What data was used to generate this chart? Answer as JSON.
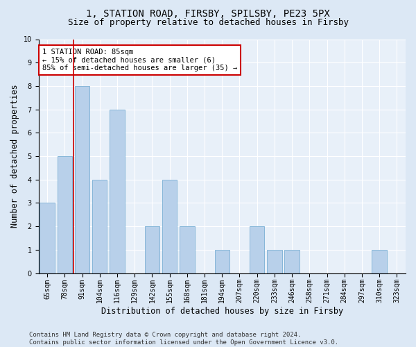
{
  "title": "1, STATION ROAD, FIRSBY, SPILSBY, PE23 5PX",
  "subtitle": "Size of property relative to detached houses in Firsby",
  "xlabel": "Distribution of detached houses by size in Firsby",
  "ylabel": "Number of detached properties",
  "categories": [
    "65sqm",
    "78sqm",
    "91sqm",
    "104sqm",
    "116sqm",
    "129sqm",
    "142sqm",
    "155sqm",
    "168sqm",
    "181sqm",
    "194sqm",
    "207sqm",
    "220sqm",
    "233sqm",
    "246sqm",
    "258sqm",
    "271sqm",
    "284sqm",
    "297sqm",
    "310sqm",
    "323sqm"
  ],
  "values": [
    3,
    5,
    8,
    4,
    7,
    0,
    2,
    4,
    2,
    0,
    1,
    0,
    2,
    1,
    1,
    0,
    0,
    0,
    0,
    1,
    0
  ],
  "bar_color": "#b8d0ea",
  "bar_edge_color": "#7aafd4",
  "subject_line_color": "#cc0000",
  "subject_line_index": 1.5,
  "annotation_text": "1 STATION ROAD: 85sqm\n← 15% of detached houses are smaller (6)\n85% of semi-detached houses are larger (35) →",
  "annotation_box_color": "#ffffff",
  "annotation_box_edge": "#cc0000",
  "ylim": [
    0,
    10
  ],
  "yticks": [
    0,
    1,
    2,
    3,
    4,
    5,
    6,
    7,
    8,
    9,
    10
  ],
  "footer": "Contains HM Land Registry data © Crown copyright and database right 2024.\nContains public sector information licensed under the Open Government Licence v3.0.",
  "bg_color": "#dce8f5",
  "plot_bg_color": "#e8f0f9",
  "title_fontsize": 10,
  "subtitle_fontsize": 9,
  "axis_label_fontsize": 8.5,
  "tick_fontsize": 7,
  "footer_fontsize": 6.5,
  "annotation_fontsize": 7.5
}
